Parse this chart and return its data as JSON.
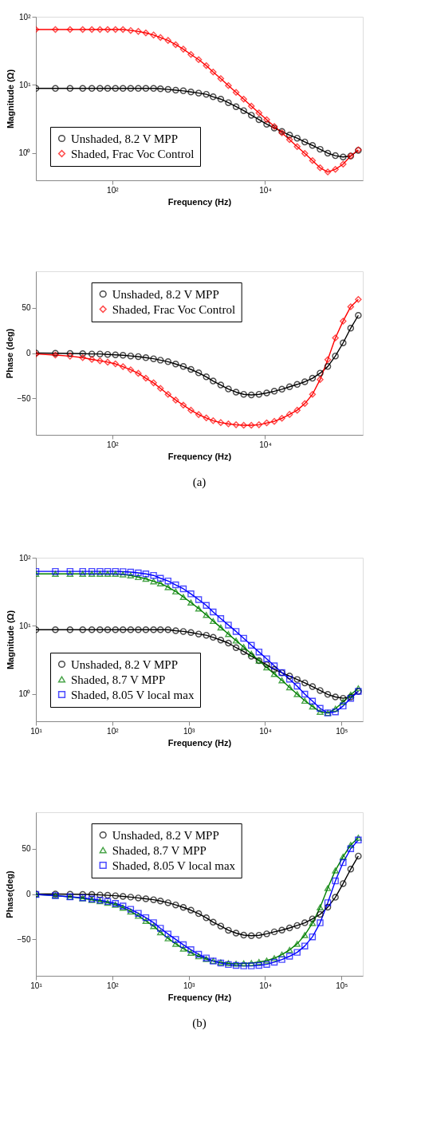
{
  "chart_data": [
    {
      "type": "line",
      "xlabel": "Frequency (Hz)",
      "ylabel": "Magnitude (Ω)",
      "log": "xy",
      "legend": "bottom left",
      "grid": false,
      "xlim": [
        10,
        190000
      ],
      "xticks": [
        {
          "value": 100,
          "label": "10²"
        },
        {
          "value": 10000,
          "label": "10⁴"
        }
      ],
      "ylim": [
        0.4,
        100
      ],
      "yticks": [
        {
          "value": 1,
          "label": "10⁰"
        },
        {
          "value": 10,
          "label": "10¹"
        },
        {
          "value": 100,
          "label": "10²"
        }
      ],
      "x": [
        10,
        18,
        28,
        41,
        54,
        69,
        87,
        110,
        138,
        174,
        219,
        275,
        347,
        427,
        537,
        676,
        851,
        1070,
        1350,
        1700,
        2090,
        2630,
        3310,
        4170,
        5250,
        6610,
        8320,
        10500,
        13200,
        16600,
        20900,
        26300,
        33100,
        41700,
        52500,
        66100,
        83200,
        105000,
        132000,
        166000
      ],
      "series": [
        {
          "name": "Unshaded, 8.2 V MPP",
          "color": "#000000",
          "marker": "circle",
          "line_style": "solid",
          "values": [
            8.9,
            8.9,
            8.9,
            8.9,
            8.9,
            8.9,
            8.9,
            8.9,
            8.9,
            8.9,
            8.9,
            8.9,
            8.9,
            8.8,
            8.6,
            8.4,
            8.2,
            7.9,
            7.6,
            7.3,
            6.7,
            6.2,
            5.5,
            4.8,
            4.2,
            3.6,
            3.1,
            2.66,
            2.34,
            2.08,
            1.84,
            1.66,
            1.46,
            1.3,
            1.14,
            1.0,
            0.92,
            0.88,
            0.91,
            1.1
          ]
        },
        {
          "name": "Shaded, Frac Voc Control",
          "color": "#ff0000",
          "marker": "diamond",
          "line_style": "solid",
          "values": [
            65,
            65,
            65,
            65,
            65,
            65,
            65,
            65,
            65,
            63,
            61,
            58,
            54,
            49.6,
            45,
            39,
            33.5,
            28,
            23.5,
            19.2,
            15.5,
            12.4,
            9.8,
            7.8,
            6.2,
            4.9,
            3.9,
            3.1,
            2.47,
            1.99,
            1.58,
            1.25,
            0.99,
            0.78,
            0.61,
            0.53,
            0.58,
            0.69,
            0.91,
            1.12
          ]
        }
      ]
    },
    {
      "type": "line",
      "xlabel": "Frequency (Hz)",
      "ylabel": "Phase (deg)",
      "log": "x",
      "legend": "top",
      "grid": false,
      "xlim": [
        10,
        190000
      ],
      "xticks": [
        {
          "value": 100,
          "label": "10²"
        },
        {
          "value": 10000,
          "label": "10⁴"
        }
      ],
      "ylim": [
        -90,
        90
      ],
      "yticks": [
        -50,
        0,
        50
      ],
      "x": [
        10,
        18,
        28,
        41,
        54,
        69,
        87,
        110,
        138,
        174,
        219,
        275,
        347,
        427,
        537,
        676,
        851,
        1070,
        1350,
        1700,
        2090,
        2630,
        3310,
        4170,
        5250,
        6610,
        8320,
        10500,
        13200,
        16600,
        20900,
        26300,
        33100,
        41700,
        52500,
        66100,
        83200,
        105000,
        132000,
        166000
      ],
      "annotations": [
        "(a)"
      ],
      "series": [
        {
          "name": "Unshaded, 8.2 V MPP",
          "color": "#000000",
          "marker": "circle",
          "line_style": "solid",
          "values": [
            0,
            -0.2,
            -0.5,
            -0.7,
            -1,
            -1,
            -1.5,
            -2,
            -2.4,
            -3.2,
            -3.9,
            -5.1,
            -6.3,
            -7.8,
            -9.5,
            -12.1,
            -14.8,
            -18,
            -21.8,
            -26.2,
            -30.8,
            -35.2,
            -39.6,
            -43,
            -45.4,
            -46.1,
            -45.4,
            -43.9,
            -42,
            -39.8,
            -37.1,
            -34.5,
            -31.6,
            -27.7,
            -22.1,
            -14.8,
            -3.2,
            11.2,
            27.4,
            41.5
          ]
        },
        {
          "name": "Shaded, Frac Voc Control",
          "color": "#ff0000",
          "marker": "diamond",
          "line_style": "solid",
          "values": [
            -1,
            -2.2,
            -3.4,
            -5.1,
            -7,
            -8.5,
            -10,
            -11.9,
            -15,
            -18.4,
            -22.3,
            -27.7,
            -32.8,
            -38.8,
            -45.4,
            -51.7,
            -57.3,
            -62.9,
            -67.7,
            -71.4,
            -74.5,
            -76.5,
            -77.9,
            -78.9,
            -79.4,
            -79.4,
            -78.9,
            -76.9,
            -75.2,
            -71.8,
            -67.5,
            -62.9,
            -55.6,
            -45.4,
            -29.1,
            -7.3,
            16.7,
            35.2,
            51,
            59
          ]
        }
      ]
    },
    {
      "type": "line",
      "xlabel": "Frequency (Hz)",
      "ylabel": "Magnitude (Ω)",
      "log": "xy",
      "legend": "bottom left",
      "grid": false,
      "xlim": [
        10,
        190000
      ],
      "xticks": [
        {
          "value": 10,
          "label": "10¹"
        },
        {
          "value": 100,
          "label": "10²"
        },
        {
          "value": 1000,
          "label": "10³"
        },
        {
          "value": 10000,
          "label": "10⁴"
        },
        {
          "value": 100000,
          "label": "10⁵"
        }
      ],
      "ylim": [
        0.4,
        100
      ],
      "yticks": [
        {
          "value": 1,
          "label": "10⁰"
        },
        {
          "value": 10,
          "label": "10¹"
        },
        {
          "value": 100,
          "label": "10²"
        }
      ],
      "x": [
        10,
        18,
        28,
        41,
        54,
        69,
        87,
        110,
        138,
        174,
        219,
        275,
        347,
        427,
        537,
        676,
        851,
        1070,
        1350,
        1700,
        2090,
        2630,
        3310,
        4170,
        5250,
        6610,
        8320,
        10500,
        13200,
        16600,
        20900,
        26300,
        33100,
        41700,
        52500,
        66100,
        83200,
        105000,
        132000,
        166000
      ],
      "series": [
        {
          "name": "Unshaded, 8.2 V MPP",
          "color": "#000000",
          "marker": "circle",
          "line_style": "solid",
          "values": [
            8.8,
            8.8,
            8.8,
            8.8,
            8.8,
            8.8,
            8.8,
            8.8,
            8.8,
            8.8,
            8.8,
            8.8,
            8.8,
            8.8,
            8.8,
            8.5,
            8.3,
            8.0,
            7.6,
            7.3,
            6.8,
            6.2,
            5.6,
            4.8,
            4.2,
            3.6,
            3.1,
            2.7,
            2.3,
            2.06,
            1.84,
            1.64,
            1.46,
            1.29,
            1.13,
            0.99,
            0.91,
            0.87,
            0.91,
            1.1
          ]
        },
        {
          "name": "Shaded, 8.7 V MPP",
          "color": "#008000",
          "marker": "triangle",
          "line_style": "solid",
          "values": [
            58,
            58,
            58,
            58,
            58,
            58,
            58,
            58,
            57,
            55,
            52,
            49,
            45,
            42,
            37,
            32,
            26.6,
            22,
            18,
            14.5,
            11.8,
            9.5,
            7.6,
            6.1,
            4.9,
            3.9,
            3.1,
            2.47,
            1.98,
            1.59,
            1.26,
            1.0,
            0.8,
            0.66,
            0.55,
            0.53,
            0.61,
            0.77,
            0.98,
            1.22
          ]
        },
        {
          "name": "Shaded, 8.05 V local max",
          "color": "#0000ff",
          "marker": "square",
          "line_style": "solid",
          "values": [
            63,
            63,
            63,
            63,
            63,
            63,
            63,
            63,
            62.5,
            61.5,
            60,
            58,
            55,
            50,
            45.6,
            40,
            35,
            29.5,
            24.3,
            20,
            16,
            12.8,
            10.3,
            8.3,
            6.6,
            5.2,
            4.15,
            3.3,
            2.6,
            2.07,
            1.66,
            1.31,
            1.0,
            0.79,
            0.62,
            0.53,
            0.55,
            0.67,
            0.87,
            1.1
          ]
        }
      ]
    },
    {
      "type": "line",
      "xlabel": "Frequency (Hz)",
      "ylabel": "Phase(deg)",
      "log": "x",
      "legend": "top",
      "grid": false,
      "xlim": [
        10,
        190000
      ],
      "xticks": [
        {
          "value": 10,
          "label": "10¹"
        },
        {
          "value": 100,
          "label": "10²"
        },
        {
          "value": 1000,
          "label": "10³"
        },
        {
          "value": 10000,
          "label": "10⁴"
        },
        {
          "value": 100000,
          "label": "10⁵"
        }
      ],
      "ylim": [
        -90,
        90
      ],
      "yticks": [
        -50,
        0,
        50
      ],
      "x": [
        10,
        18,
        28,
        41,
        54,
        69,
        87,
        110,
        138,
        174,
        219,
        275,
        347,
        427,
        537,
        676,
        851,
        1070,
        1350,
        1700,
        2090,
        2630,
        3310,
        4170,
        5250,
        6610,
        8320,
        10500,
        13200,
        16600,
        20900,
        26300,
        33100,
        41700,
        52500,
        66100,
        83200,
        105000,
        132000,
        166000
      ],
      "annotations": [
        "(b)"
      ],
      "series": [
        {
          "name": "Unshaded, 8.2 V MPP",
          "color": "#000000",
          "marker": "circle",
          "line_style": "solid",
          "values": [
            0,
            0,
            -0.2,
            -0.5,
            -0.5,
            -1,
            -1.4,
            -1.9,
            -2.6,
            -3.4,
            -4.3,
            -5.3,
            -6.3,
            -7.7,
            -9.6,
            -12,
            -14.7,
            -17.8,
            -21.6,
            -26.2,
            -31,
            -35.3,
            -39.9,
            -43,
            -45.2,
            -45.9,
            -45.4,
            -43.8,
            -41.6,
            -39.7,
            -37.3,
            -34.6,
            -31.7,
            -27.4,
            -22.4,
            -14.4,
            -3.6,
            11.5,
            27.4,
            41.8
          ]
        },
        {
          "name": "Shaded, 8.7 V MPP",
          "color": "#008000",
          "marker": "triangle",
          "line_style": "solid",
          "values": [
            -0.5,
            -1.7,
            -3.1,
            -4.8,
            -6.5,
            -7.9,
            -9.6,
            -11.8,
            -15.1,
            -19.2,
            -24,
            -29.6,
            -35.3,
            -42.1,
            -48.8,
            -54.8,
            -60.1,
            -64.7,
            -68.5,
            -71.6,
            -73.6,
            -75.2,
            -76.2,
            -76.7,
            -76.4,
            -76,
            -74.8,
            -73.3,
            -70.7,
            -66.6,
            -61.5,
            -54.8,
            -45.2,
            -32,
            -14.7,
            6.5,
            26,
            41.1,
            54,
            62
          ]
        },
        {
          "name": "Shaded, 8.05 V local max",
          "color": "#0000ff",
          "marker": "square",
          "line_style": "solid",
          "values": [
            -0.5,
            -1.7,
            -3.1,
            -4.1,
            -5.5,
            -6.7,
            -8.2,
            -10.3,
            -13.2,
            -16.8,
            -21.2,
            -26,
            -31.5,
            -37.7,
            -44,
            -50,
            -55.8,
            -61.3,
            -66.3,
            -70.4,
            -73.8,
            -76,
            -77.6,
            -78.6,
            -79.1,
            -79.1,
            -78.6,
            -77.4,
            -75,
            -72.1,
            -68.5,
            -64.2,
            -57.2,
            -47.1,
            -31.7,
            -9.6,
            14.4,
            34.6,
            49.8,
            59.4
          ]
        }
      ]
    }
  ]
}
